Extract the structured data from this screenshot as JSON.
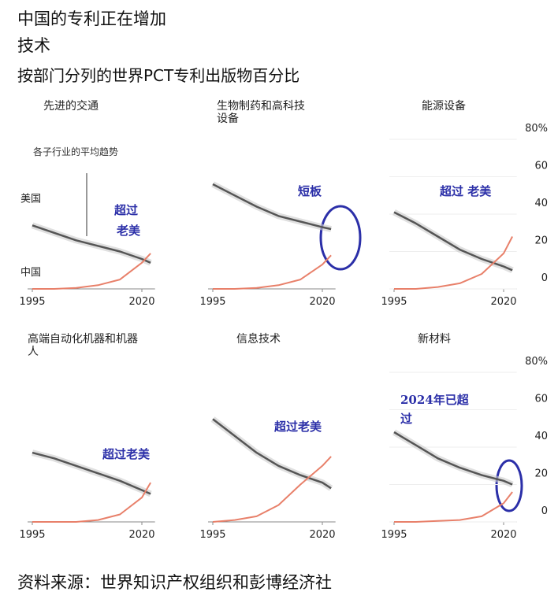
{
  "title": "中国的专利正在增加",
  "title2": "技术",
  "subtitle": "按部门分列的世界PCT专利出版物百分比",
  "source": "资料来源：世界知识产权组织和彭博经济社",
  "chart_data": [
    {
      "type": "line",
      "title": "先进的交通",
      "x": [
        1995,
        2000,
        2005,
        2010,
        2015,
        2020,
        2022
      ],
      "xlim": [
        1995,
        2023
      ],
      "xticks": [
        1995,
        2020
      ],
      "ylim": [
        0,
        80
      ],
      "series": [
        {
          "name": "美国",
          "color": "#555555",
          "values": [
            34,
            30,
            26,
            23,
            20,
            16,
            14
          ]
        },
        {
          "name": "中国",
          "color": "#e8806a",
          "values": [
            0,
            0,
            0.5,
            2,
            5,
            14,
            19
          ]
        }
      ],
      "annotations": [
        "各子行业的平均趋势",
        "超过",
        "老美"
      ]
    },
    {
      "type": "line",
      "title": "生物制药和高科技设备",
      "x": [
        1995,
        2000,
        2005,
        2010,
        2015,
        2020,
        2022
      ],
      "xlim": [
        1995,
        2023
      ],
      "xticks": [
        1995,
        2020
      ],
      "ylim": [
        0,
        80
      ],
      "series": [
        {
          "color": "#555555",
          "values": [
            56,
            50,
            44,
            39,
            36,
            33,
            32
          ]
        },
        {
          "color": "#e8806a",
          "values": [
            0,
            0,
            0.5,
            2,
            5,
            13,
            18
          ]
        }
      ],
      "annotations": [
        "短板"
      ]
    },
    {
      "type": "line",
      "title": "能源设备",
      "x": [
        1995,
        2000,
        2005,
        2010,
        2015,
        2020,
        2022
      ],
      "xlim": [
        1995,
        2023
      ],
      "xticks": [
        1995,
        2020
      ],
      "ylim": [
        0,
        80
      ],
      "yticks": [
        0,
        20,
        40,
        60,
        {
          "value": 80,
          "label": "80%"
        }
      ],
      "series": [
        {
          "color": "#555555",
          "values": [
            41,
            35,
            28,
            21,
            16,
            12,
            10
          ]
        },
        {
          "color": "#e8806a",
          "values": [
            0,
            0,
            1,
            3,
            8,
            19,
            28
          ]
        }
      ],
      "annotations": [
        "超过 老美"
      ]
    },
    {
      "type": "line",
      "title": "高端自动化机器和机器人",
      "x": [
        1995,
        2000,
        2005,
        2010,
        2015,
        2020,
        2022
      ],
      "xlim": [
        1995,
        2023
      ],
      "xticks": [
        1995,
        2020
      ],
      "ylim": [
        0,
        80
      ],
      "series": [
        {
          "color": "#555555",
          "values": [
            37,
            34,
            30,
            26,
            22,
            17,
            15
          ]
        },
        {
          "color": "#e8806a",
          "values": [
            0,
            0,
            0,
            1,
            4,
            13,
            21
          ]
        }
      ],
      "annotations": [
        "超过老美"
      ]
    },
    {
      "type": "line",
      "title": "信息技术",
      "x": [
        1995,
        2000,
        2005,
        2010,
        2015,
        2020,
        2022
      ],
      "xlim": [
        1995,
        2023
      ],
      "xticks": [
        1995,
        2020
      ],
      "ylim": [
        0,
        80
      ],
      "series": [
        {
          "color": "#555555",
          "values": [
            55,
            46,
            37,
            30,
            25,
            21,
            18
          ]
        },
        {
          "color": "#e8806a",
          "values": [
            0,
            1,
            3,
            9,
            20,
            30,
            35
          ]
        }
      ],
      "annotations": [
        "超过老美"
      ]
    },
    {
      "type": "line",
      "title": "新材料",
      "x": [
        1995,
        2000,
        2005,
        2010,
        2015,
        2020,
        2022
      ],
      "xlim": [
        1995,
        2023
      ],
      "xticks": [
        1995,
        2020
      ],
      "ylim": [
        0,
        80
      ],
      "yticks": [
        0,
        20,
        40,
        60,
        {
          "value": 80,
          "label": "80%"
        }
      ],
      "series": [
        {
          "color": "#555555",
          "values": [
            48,
            41,
            34,
            29,
            25,
            22,
            20
          ]
        },
        {
          "color": "#e8806a",
          "values": [
            0,
            0,
            0.5,
            1,
            3,
            10,
            16
          ]
        }
      ],
      "annotations": [
        "2024年已超",
        "过"
      ]
    }
  ]
}
